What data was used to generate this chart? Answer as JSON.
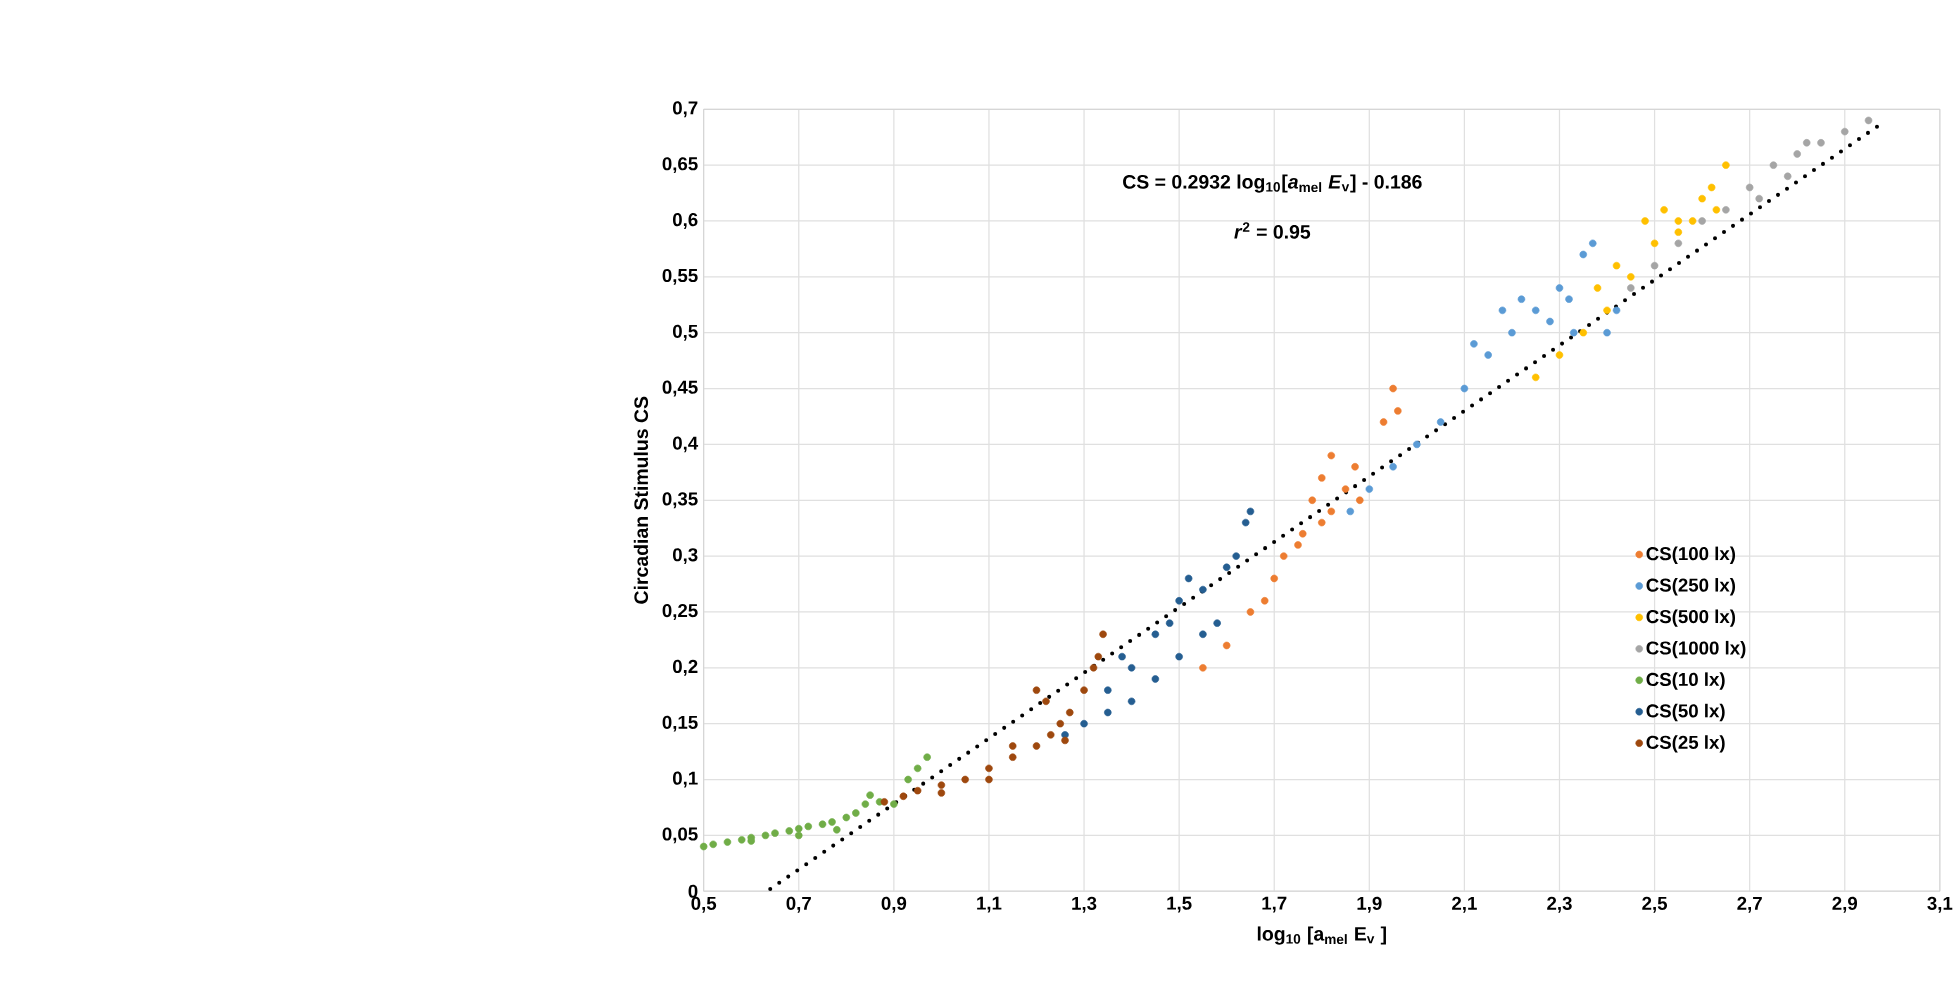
{
  "chart_data": {
    "type": "scatter",
    "xlabel": "log$_{10}$ [a$_{mel}$  E$_{v}$ ]",
    "ylabel": "Circadian Stimulus CS",
    "annotations": [
      "CS = 0.2932 log$_{10}$[*a*$_{mel}$ *E*$_{v}$] - 0.186",
      "*r*$^{2}$ = 0.95"
    ],
    "xlim": [
      0.5,
      3.1
    ],
    "ylim": [
      0,
      0.7
    ],
    "xticks": [
      {
        "value": 0.5,
        "label": "0,5"
      },
      {
        "value": 0.7,
        "label": "0,7"
      },
      {
        "value": 0.9,
        "label": "0,9"
      },
      {
        "value": 1.1,
        "label": "1,1"
      },
      {
        "value": 1.3,
        "label": "1,3"
      },
      {
        "value": 1.5,
        "label": "1,5"
      },
      {
        "value": 1.7,
        "label": "1,7"
      },
      {
        "value": 1.9,
        "label": "1,9"
      },
      {
        "value": 2.1,
        "label": "2,1"
      },
      {
        "value": 2.3,
        "label": "2,3"
      },
      {
        "value": 2.5,
        "label": "2,5"
      },
      {
        "value": 2.7,
        "label": "2,7"
      },
      {
        "value": 2.9,
        "label": "2,9"
      },
      {
        "value": 3.1,
        "label": "3,1"
      }
    ],
    "yticks": [
      0,
      {
        "value": 0.05,
        "label": "0,05"
      },
      {
        "value": 0.1,
        "label": "0,1"
      },
      {
        "value": 0.15,
        "label": "0,15"
      },
      {
        "value": 0.2,
        "label": "0,2"
      },
      {
        "value": 0.25,
        "label": "0,25"
      },
      {
        "value": 0.3,
        "label": "0,3"
      },
      {
        "value": 0.35,
        "label": "0,35"
      },
      {
        "value": 0.4,
        "label": "0,4"
      },
      {
        "value": 0.45,
        "label": "0,45"
      },
      {
        "value": 0.5,
        "label": "0,5"
      },
      {
        "value": 0.55,
        "label": "0,55"
      },
      {
        "value": 0.6,
        "label": "0,6"
      },
      {
        "value": 0.65,
        "label": "0,65"
      },
      {
        "value": 0.7,
        "label": "0,7"
      }
    ],
    "grid": true,
    "legend": "right",
    "marker": "circle",
    "series": [
      {
        "name": "CS(100 lx)",
        "color": "#ed7d31",
        "x": [
          1.55,
          1.6,
          1.65,
          1.68,
          1.7,
          1.72,
          1.75,
          1.76,
          1.78,
          1.8,
          1.8,
          1.82,
          1.82,
          1.85,
          1.87,
          1.88,
          1.93,
          1.95,
          1.96
        ],
        "values": [
          0.2,
          0.22,
          0.25,
          0.26,
          0.28,
          0.3,
          0.31,
          0.32,
          0.35,
          0.33,
          0.37,
          0.34,
          0.39,
          0.36,
          0.38,
          0.35,
          0.42,
          0.45,
          0.43
        ]
      },
      {
        "name": "CS(250 lx)",
        "color": "#5b9bd5",
        "x": [
          1.86,
          1.9,
          1.95,
          2.0,
          2.05,
          2.1,
          2.12,
          2.15,
          2.18,
          2.2,
          2.22,
          2.25,
          2.28,
          2.3,
          2.32,
          2.33,
          2.35,
          2.37,
          2.4,
          2.42
        ],
        "values": [
          0.34,
          0.36,
          0.38,
          0.4,
          0.42,
          0.45,
          0.49,
          0.48,
          0.52,
          0.5,
          0.53,
          0.52,
          0.51,
          0.54,
          0.53,
          0.5,
          0.57,
          0.58,
          0.5,
          0.52
        ]
      },
      {
        "name": "CS(500 lx)",
        "color": "#ffc000",
        "x": [
          2.25,
          2.3,
          2.35,
          2.38,
          2.4,
          2.42,
          2.45,
          2.48,
          2.5,
          2.52,
          2.55,
          2.55,
          2.58,
          2.6,
          2.62,
          2.63,
          2.65
        ],
        "values": [
          0.46,
          0.48,
          0.5,
          0.54,
          0.52,
          0.56,
          0.55,
          0.6,
          0.58,
          0.61,
          0.6,
          0.59,
          0.6,
          0.62,
          0.63,
          0.61,
          0.65
        ]
      },
      {
        "name": "CS(1000 lx)",
        "color": "#a5a5a5",
        "x": [
          2.45,
          2.5,
          2.55,
          2.6,
          2.65,
          2.7,
          2.72,
          2.75,
          2.78,
          2.8,
          2.82,
          2.85,
          2.9,
          2.95
        ],
        "values": [
          0.54,
          0.56,
          0.58,
          0.6,
          0.61,
          0.63,
          0.62,
          0.65,
          0.64,
          0.66,
          0.67,
          0.67,
          0.68,
          0.69
        ]
      },
      {
        "name": "CS(10 lx)",
        "color": "#70ad47",
        "x": [
          0.5,
          0.52,
          0.55,
          0.58,
          0.6,
          0.6,
          0.63,
          0.65,
          0.68,
          0.7,
          0.7,
          0.72,
          0.75,
          0.77,
          0.78,
          0.8,
          0.82,
          0.84,
          0.85,
          0.87,
          0.9,
          0.93,
          0.95,
          0.97
        ],
        "values": [
          0.04,
          0.042,
          0.044,
          0.046,
          0.048,
          0.045,
          0.05,
          0.052,
          0.054,
          0.056,
          0.05,
          0.058,
          0.06,
          0.062,
          0.055,
          0.066,
          0.07,
          0.078,
          0.086,
          0.08,
          0.078,
          0.1,
          0.11,
          0.12
        ]
      },
      {
        "name": "CS(50 lx)",
        "color": "#255e91",
        "x": [
          1.26,
          1.3,
          1.35,
          1.35,
          1.38,
          1.4,
          1.4,
          1.45,
          1.45,
          1.48,
          1.5,
          1.5,
          1.52,
          1.55,
          1.55,
          1.58,
          1.6,
          1.62,
          1.64,
          1.65
        ],
        "values": [
          0.14,
          0.15,
          0.16,
          0.18,
          0.21,
          0.17,
          0.2,
          0.19,
          0.23,
          0.24,
          0.21,
          0.26,
          0.28,
          0.23,
          0.27,
          0.24,
          0.29,
          0.3,
          0.33,
          0.34
        ]
      },
      {
        "name": "CS(25 lx)",
        "color": "#9e480e",
        "x": [
          0.88,
          0.92,
          0.95,
          1.0,
          1.0,
          1.05,
          1.1,
          1.1,
          1.15,
          1.15,
          1.2,
          1.2,
          1.22,
          1.23,
          1.25,
          1.26,
          1.27,
          1.3,
          1.32,
          1.33,
          1.34
        ],
        "values": [
          0.08,
          0.085,
          0.09,
          0.095,
          0.088,
          0.1,
          0.11,
          0.1,
          0.12,
          0.13,
          0.13,
          0.18,
          0.17,
          0.14,
          0.15,
          0.135,
          0.16,
          0.18,
          0.2,
          0.21,
          0.23
        ]
      },
      {
        "type": "line",
        "color": "#000000",
        "line_style": "dotted",
        "marker": "none",
        "x": [
          0.64,
          2.98
        ],
        "values": [
          0.002,
          0.688
        ]
      }
    ]
  }
}
